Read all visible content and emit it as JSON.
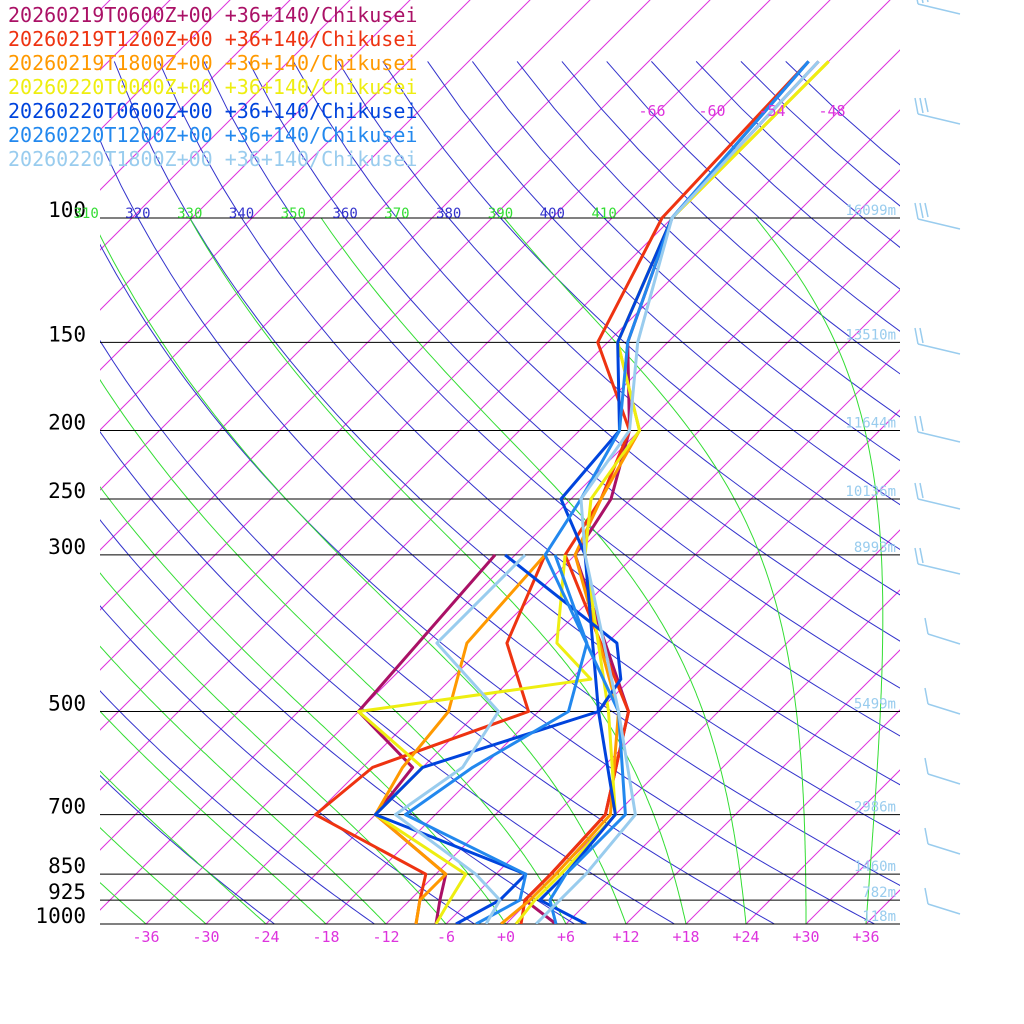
{
  "chart_data": {
    "type": "skew-t",
    "location": "+36+140/Chikusei",
    "pressure_levels": [
      100,
      150,
      200,
      250,
      300,
      500,
      700,
      850,
      925,
      1000
    ],
    "temperature_ticks": [
      "-36",
      "-30",
      "-24",
      "-18",
      "-12",
      "-6",
      "+0",
      "+6",
      "+12",
      "+18",
      "+24",
      "+30",
      "+36"
    ],
    "upper_isotherm_labels": [
      "-66",
      "-60",
      "-54",
      "-48"
    ],
    "theta_labels": [
      "310",
      "320",
      "330",
      "340",
      "350",
      "360",
      "370",
      "380",
      "390",
      "400",
      "410"
    ],
    "height_labels": [
      {
        "p": 100,
        "label": "16099m"
      },
      {
        "p": 150,
        "label": "13510m"
      },
      {
        "p": 200,
        "label": "11644m"
      },
      {
        "p": 250,
        "label": "10136m"
      },
      {
        "p": 300,
        "label": "8993m"
      },
      {
        "p": 500,
        "label": "5499m"
      },
      {
        "p": 700,
        "label": "2986m"
      },
      {
        "p": 850,
        "label": "1460m"
      },
      {
        "p": 925,
        "label": "782m"
      },
      {
        "p": 1000,
        "label": "118m"
      }
    ],
    "series": [
      {
        "name": "20260219T0600Z+00 +36+140/Chikusei",
        "color": "#aa1166",
        "temperature": [
          [
            60,
            -55
          ],
          [
            100,
            -54
          ],
          [
            150,
            -46
          ],
          [
            200,
            -37
          ],
          [
            250,
            -32
          ],
          [
            300,
            -30
          ],
          [
            500,
            -9
          ],
          [
            700,
            -1
          ],
          [
            850,
            -0.5
          ],
          [
            925,
            -0.5
          ],
          [
            1000,
            5
          ]
        ],
        "dewpoint": [
          [
            300,
            -38
          ],
          [
            500,
            -36
          ],
          [
            600,
            -25
          ],
          [
            700,
            -24
          ],
          [
            850,
            -11
          ],
          [
            925,
            -9
          ],
          [
            1000,
            -7
          ]
        ]
      },
      {
        "name": "20260219T1200Z+00 +36+140/Chikusei",
        "color": "#ee3311",
        "temperature": [
          [
            60,
            -56
          ],
          [
            100,
            -55
          ],
          [
            150,
            -49
          ],
          [
            200,
            -37
          ],
          [
            250,
            -33
          ],
          [
            300,
            -31
          ],
          [
            500,
            -9
          ],
          [
            700,
            -1
          ],
          [
            850,
            -0.5
          ],
          [
            925,
            -0.5
          ],
          [
            1000,
            1.5
          ]
        ],
        "dewpoint": [
          [
            300,
            -33
          ],
          [
            400,
            -28
          ],
          [
            500,
            -19
          ],
          [
            600,
            -29
          ],
          [
            700,
            -30
          ],
          [
            850,
            -13
          ],
          [
            925,
            -11
          ],
          [
            1000,
            -9
          ]
        ]
      },
      {
        "name": "20260219T1800Z+00 +36+140/Chikusei",
        "color": "#ff9900",
        "temperature": [
          [
            60,
            -54
          ],
          [
            100,
            -54
          ],
          [
            150,
            -47
          ],
          [
            200,
            -36
          ],
          [
            250,
            -33
          ],
          [
            300,
            -30
          ],
          [
            500,
            -10
          ],
          [
            700,
            -0.5
          ],
          [
            850,
            0
          ],
          [
            925,
            0
          ],
          [
            1000,
            -0.5
          ]
        ],
        "dewpoint": [
          [
            300,
            -33
          ],
          [
            400,
            -32
          ],
          [
            500,
            -27
          ],
          [
            600,
            -26
          ],
          [
            700,
            -24
          ],
          [
            850,
            -11
          ],
          [
            925,
            -11
          ],
          [
            1000,
            -9
          ]
        ]
      },
      {
        "name": "20260220T0000Z+00 +36+140/Chikusei",
        "color": "#eeee11",
        "temperature": [
          [
            60,
            -54
          ],
          [
            100,
            -54
          ],
          [
            150,
            -47
          ],
          [
            200,
            -36
          ],
          [
            250,
            -34
          ],
          [
            300,
            -29
          ],
          [
            500,
            -11
          ],
          [
            700,
            0
          ],
          [
            850,
            0.5
          ],
          [
            925,
            0.5
          ],
          [
            1000,
            1
          ]
        ],
        "dewpoint": [
          [
            300,
            -31
          ],
          [
            400,
            -23
          ],
          [
            450,
            -16
          ],
          [
            500,
            -36
          ],
          [
            600,
            -24
          ],
          [
            700,
            -24
          ],
          [
            850,
            -9
          ],
          [
            925,
            -8
          ],
          [
            1000,
            -7
          ]
        ]
      },
      {
        "name": "20260220T0600Z+00 +36+140/Chikusei",
        "color": "#0044dd",
        "temperature": [
          [
            60,
            -56
          ],
          [
            100,
            -54
          ],
          [
            150,
            -47
          ],
          [
            200,
            -38
          ],
          [
            250,
            -37
          ],
          [
            300,
            -29
          ],
          [
            500,
            -12
          ],
          [
            700,
            0
          ],
          [
            850,
            1
          ],
          [
            925,
            1
          ],
          [
            1000,
            8
          ]
        ],
        "dewpoint": [
          [
            300,
            -37
          ],
          [
            400,
            -17
          ],
          [
            450,
            -13
          ],
          [
            500,
            -12
          ],
          [
            600,
            -24
          ],
          [
            700,
            -24
          ],
          [
            850,
            -3
          ],
          [
            925,
            -3
          ],
          [
            1000,
            -5
          ]
        ]
      },
      {
        "name": "20260220T1200Z+00 +36+140/Chikusei",
        "color": "#2288ee",
        "temperature": [
          [
            60,
            -56
          ],
          [
            100,
            -54
          ],
          [
            150,
            -46
          ],
          [
            200,
            -38
          ],
          [
            250,
            -35
          ],
          [
            300,
            -33
          ],
          [
            500,
            -10
          ],
          [
            700,
            1
          ],
          [
            850,
            1
          ],
          [
            925,
            2
          ],
          [
            1000,
            5
          ]
        ],
        "dewpoint": [
          [
            300,
            -32
          ],
          [
            400,
            -20
          ],
          [
            500,
            -15
          ],
          [
            600,
            -19
          ],
          [
            700,
            -21
          ],
          [
            850,
            -3
          ],
          [
            925,
            -1
          ],
          [
            1000,
            -3
          ]
        ]
      },
      {
        "name": "20260220T1800Z+00 +36+140/Chikusei",
        "color": "#99ccee",
        "temperature": [
          [
            60,
            -55
          ],
          [
            100,
            -54
          ],
          [
            150,
            -45
          ],
          [
            200,
            -37
          ],
          [
            250,
            -35
          ],
          [
            300,
            -29
          ],
          [
            500,
            -10
          ],
          [
            700,
            2
          ],
          [
            850,
            3
          ],
          [
            925,
            3
          ],
          [
            1000,
            3
          ]
        ],
        "dewpoint": [
          [
            300,
            -35
          ],
          [
            400,
            -35
          ],
          [
            500,
            -22
          ],
          [
            600,
            -20
          ],
          [
            700,
            -22
          ],
          [
            850,
            -8
          ],
          [
            925,
            -3
          ],
          [
            1000,
            -2
          ]
        ]
      }
    ],
    "grid": true,
    "legend_placement": "top-left",
    "wind_barbs_color": "#99ccee"
  },
  "colors": {
    "isotherm": "#dd33dd",
    "dry_adiabat": "#3333cc",
    "moist_adiabat": "#33dd33",
    "isobar": "#000000"
  }
}
